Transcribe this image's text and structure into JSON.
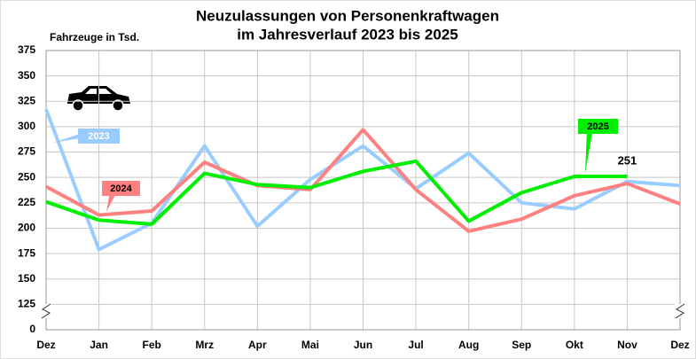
{
  "chart_data": {
    "type": "line",
    "title": [
      "Neuzulassungen von Personenkraftwagen",
      "im Jahresverlauf 2023 bis 2025"
    ],
    "y_label": "Fahrzeuge in Tsd.",
    "categories": [
      "Dez",
      "Jan",
      "Feb",
      "Mrz",
      "Apr",
      "Mai",
      "Jun",
      "Jul",
      "Aug",
      "Sep",
      "Okt",
      "Nov",
      "Dez"
    ],
    "series": [
      {
        "name": "2023",
        "color": "#99ccff",
        "values": [
          317,
          179,
          205,
          281,
          202,
          248,
          281,
          239,
          274,
          225,
          219,
          246,
          242
        ]
      },
      {
        "name": "2024",
        "color": "#ff8080",
        "values": [
          241,
          213,
          217,
          265,
          242,
          238,
          297,
          238,
          197,
          209,
          232,
          244,
          224
        ]
      },
      {
        "name": "2025",
        "color": "#00ee00",
        "values": [
          226,
          208,
          204,
          254,
          243,
          240,
          256,
          266,
          207,
          235,
          251,
          251,
          null
        ]
      }
    ],
    "ylim": [
      100,
      375
    ],
    "yticks": [
      {
        "value": 100,
        "label": "0"
      },
      125,
      150,
      175,
      200,
      225,
      250,
      275,
      300,
      325,
      350,
      375
    ],
    "grid": true
  }
}
